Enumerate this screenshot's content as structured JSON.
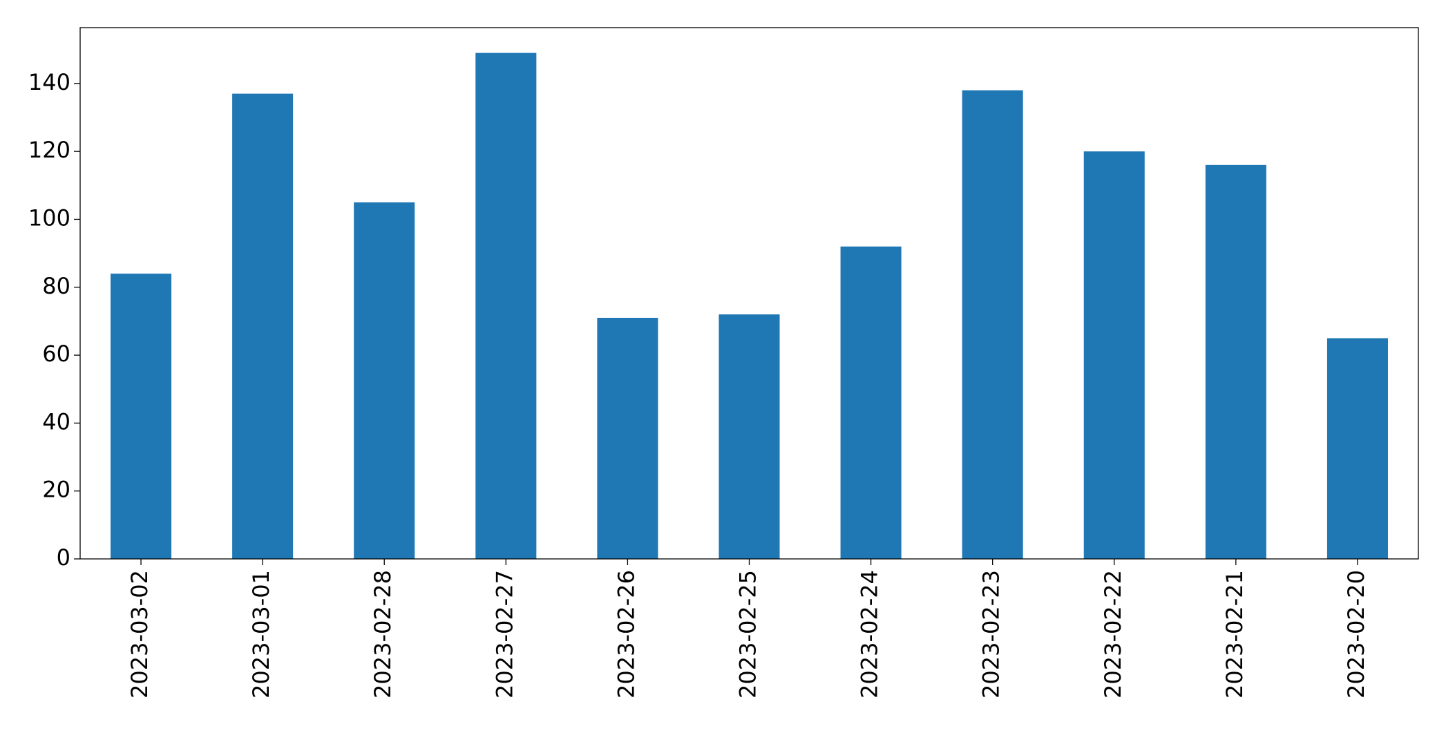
{
  "chart_data": {
    "type": "bar",
    "categories": [
      "2023-03-02",
      "2023-03-01",
      "2023-02-28",
      "2023-02-27",
      "2023-02-26",
      "2023-02-25",
      "2023-02-24",
      "2023-02-23",
      "2023-02-22",
      "2023-02-21",
      "2023-02-20"
    ],
    "values": [
      84,
      137,
      105,
      149,
      71,
      72,
      92,
      138,
      120,
      116,
      65
    ],
    "color": "#1f77b4",
    "ylim": [
      0,
      156.45
    ],
    "yticks": [
      0,
      20,
      40,
      60,
      80,
      100,
      120,
      140
    ],
    "grid": false
  }
}
